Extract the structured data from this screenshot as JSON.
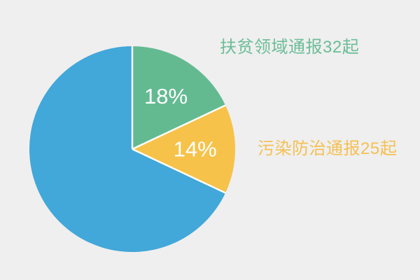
{
  "figure": {
    "background_color": "#efefef"
  },
  "chart_data": {
    "type": "pie",
    "title": "",
    "direction": "clockwise",
    "start_angle_deg": 0,
    "legend_position": "right-callouts",
    "separator_color": "#ffffff",
    "percent_text_color": "#ffffff",
    "series": [
      {
        "name": "扶贫领域通报32起",
        "value": 32,
        "percent": 18,
        "percent_label": "18%",
        "slice_color": "#63ba91",
        "label_color": "#6cbd98"
      },
      {
        "name": "污染防治通报25起",
        "value": 25,
        "percent": 14,
        "percent_label": "14%",
        "slice_color": "#f6c24a",
        "label_color": "#f5c053"
      },
      {
        "name": "",
        "percent": 68,
        "percent_label": "",
        "slice_color": "#42a7d9",
        "label_color": ""
      }
    ]
  }
}
